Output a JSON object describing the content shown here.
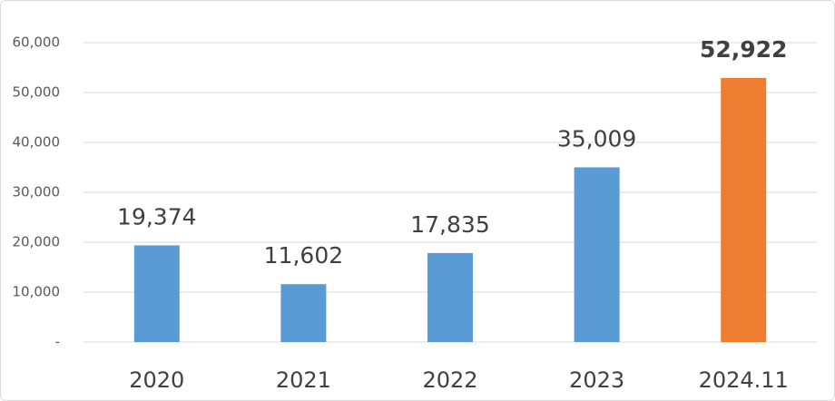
{
  "chart_data": {
    "type": "bar",
    "categories": [
      "2020",
      "2021",
      "2022",
      "2023",
      "2024.11"
    ],
    "values": [
      19374,
      11602,
      17835,
      35009,
      52922
    ],
    "value_labels": [
      "19,374",
      "11,602",
      "17,835",
      "35,009",
      "52,922"
    ],
    "value_label_bold": [
      false,
      false,
      false,
      false,
      true
    ],
    "colors": [
      "#5b9bd5",
      "#5b9bd5",
      "#5b9bd5",
      "#5b9bd5",
      "#ed7d31"
    ],
    "ylim": [
      0,
      60000
    ],
    "yticks": [
      {
        "value": 0,
        "label": "-"
      },
      {
        "value": 10000,
        "label": "10,000"
      },
      {
        "value": 20000,
        "label": "20,000"
      },
      {
        "value": 30000,
        "label": "30,000"
      },
      {
        "value": 40000,
        "label": "40,000"
      },
      {
        "value": 50000,
        "label": "50,000"
      },
      {
        "value": 60000,
        "label": "60,000"
      }
    ],
    "grid": true
  }
}
